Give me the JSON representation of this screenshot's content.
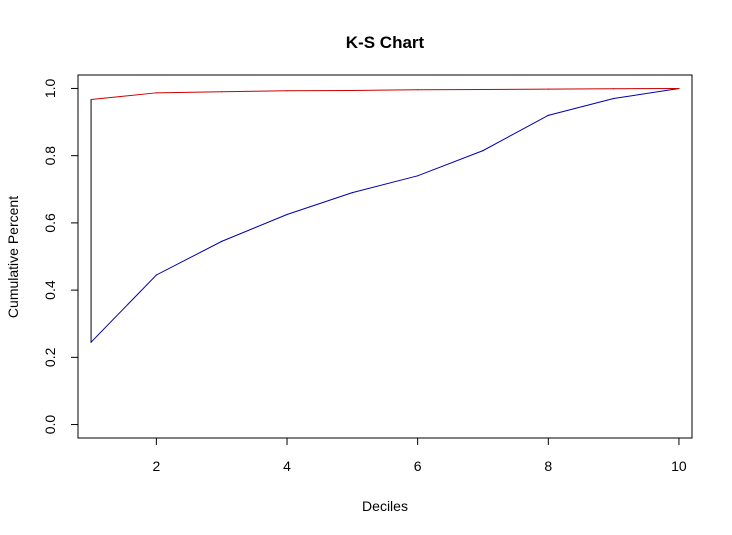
{
  "chart_data": {
    "type": "line",
    "title": "K-S Chart",
    "xlabel": "Deciles",
    "ylabel": "Cumulative Percent",
    "xlim": [
      0.8,
      10.2
    ],
    "ylim": [
      -0.04,
      1.04
    ],
    "x_ticks": [
      "2",
      "4",
      "6",
      "8",
      "10"
    ],
    "y_ticks": [
      "0.0",
      "0.2",
      "0.4",
      "0.6",
      "0.8",
      "1.0"
    ],
    "x": [
      1,
      2,
      3,
      4,
      5,
      6,
      7,
      8,
      9,
      10
    ],
    "series": [
      {
        "color": "#0000aa",
        "values": [
          0.245,
          0.445,
          0.545,
          0.625,
          0.69,
          0.74,
          0.815,
          0.92,
          0.97,
          1.0
        ]
      },
      {
        "color": "#cc0000",
        "values": [
          0.967,
          0.987,
          0.99,
          0.993,
          0.994,
          0.996,
          0.997,
          0.998,
          0.999,
          1.0
        ]
      }
    ],
    "connector": {
      "x": 1,
      "y_from": 0.245,
      "y_to": 0.967,
      "color": "#000000"
    },
    "grid": false,
    "legend": "none"
  }
}
